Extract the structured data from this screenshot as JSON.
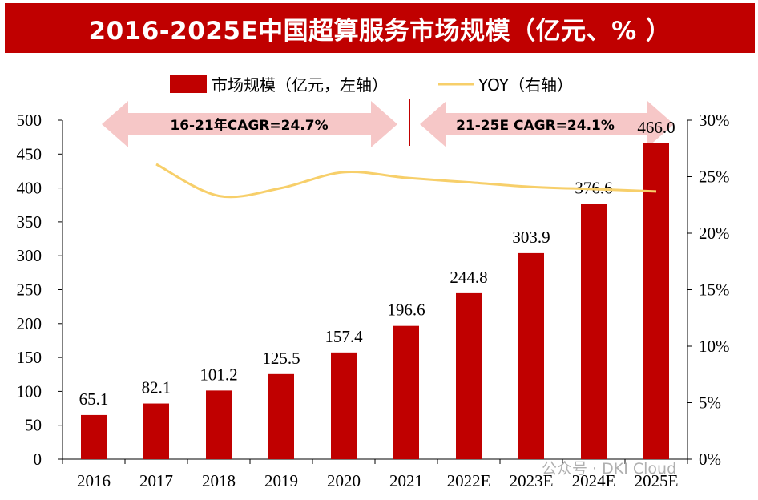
{
  "title": "2016-2025E中国超算服务市场规模（亿元、% ）",
  "legend": {
    "bar_label": "市场规模（亿元，左轴）",
    "line_label": "YOY（右轴）"
  },
  "annotations": {
    "cagr_left": "16-21年CAGR=24.7%",
    "cagr_right": "21-25E CAGR=24.1%"
  },
  "watermark": "公众号 · DKI Cloud",
  "colors": {
    "bar": "#c00000",
    "line": "#f7cf6a",
    "arrow": "#f6c7c7",
    "title_bg": "#c00000"
  },
  "chart_data": {
    "type": "bar",
    "categories": [
      "2016",
      "2017",
      "2018",
      "2019",
      "2020",
      "2021",
      "2022E",
      "2023E",
      "2024E",
      "2025E"
    ],
    "series": [
      {
        "name": "市场规模（亿元，左轴）",
        "type": "bar",
        "axis": "left",
        "values": [
          65.1,
          82.1,
          101.2,
          125.5,
          157.4,
          196.6,
          244.8,
          303.9,
          376.6,
          466.0
        ],
        "labels": [
          "65.1",
          "82.1",
          "101.2",
          "125.5",
          "157.4",
          "196.6",
          "244.8",
          "303.9",
          "376.6",
          "466.0"
        ]
      },
      {
        "name": "YOY（右轴）",
        "type": "line",
        "axis": "right",
        "values": [
          null,
          26.1,
          23.3,
          24.0,
          25.4,
          24.9,
          24.5,
          24.1,
          23.9,
          23.7
        ]
      }
    ],
    "y_left": {
      "range": [
        0,
        500
      ],
      "ticks": [
        "0",
        "50",
        "100",
        "150",
        "200",
        "250",
        "300",
        "350",
        "400",
        "450",
        "500"
      ]
    },
    "y_right": {
      "range": [
        0,
        30
      ],
      "ticks": [
        "0%",
        "5%",
        "10%",
        "15%",
        "20%",
        "25%",
        "30%"
      ]
    }
  }
}
